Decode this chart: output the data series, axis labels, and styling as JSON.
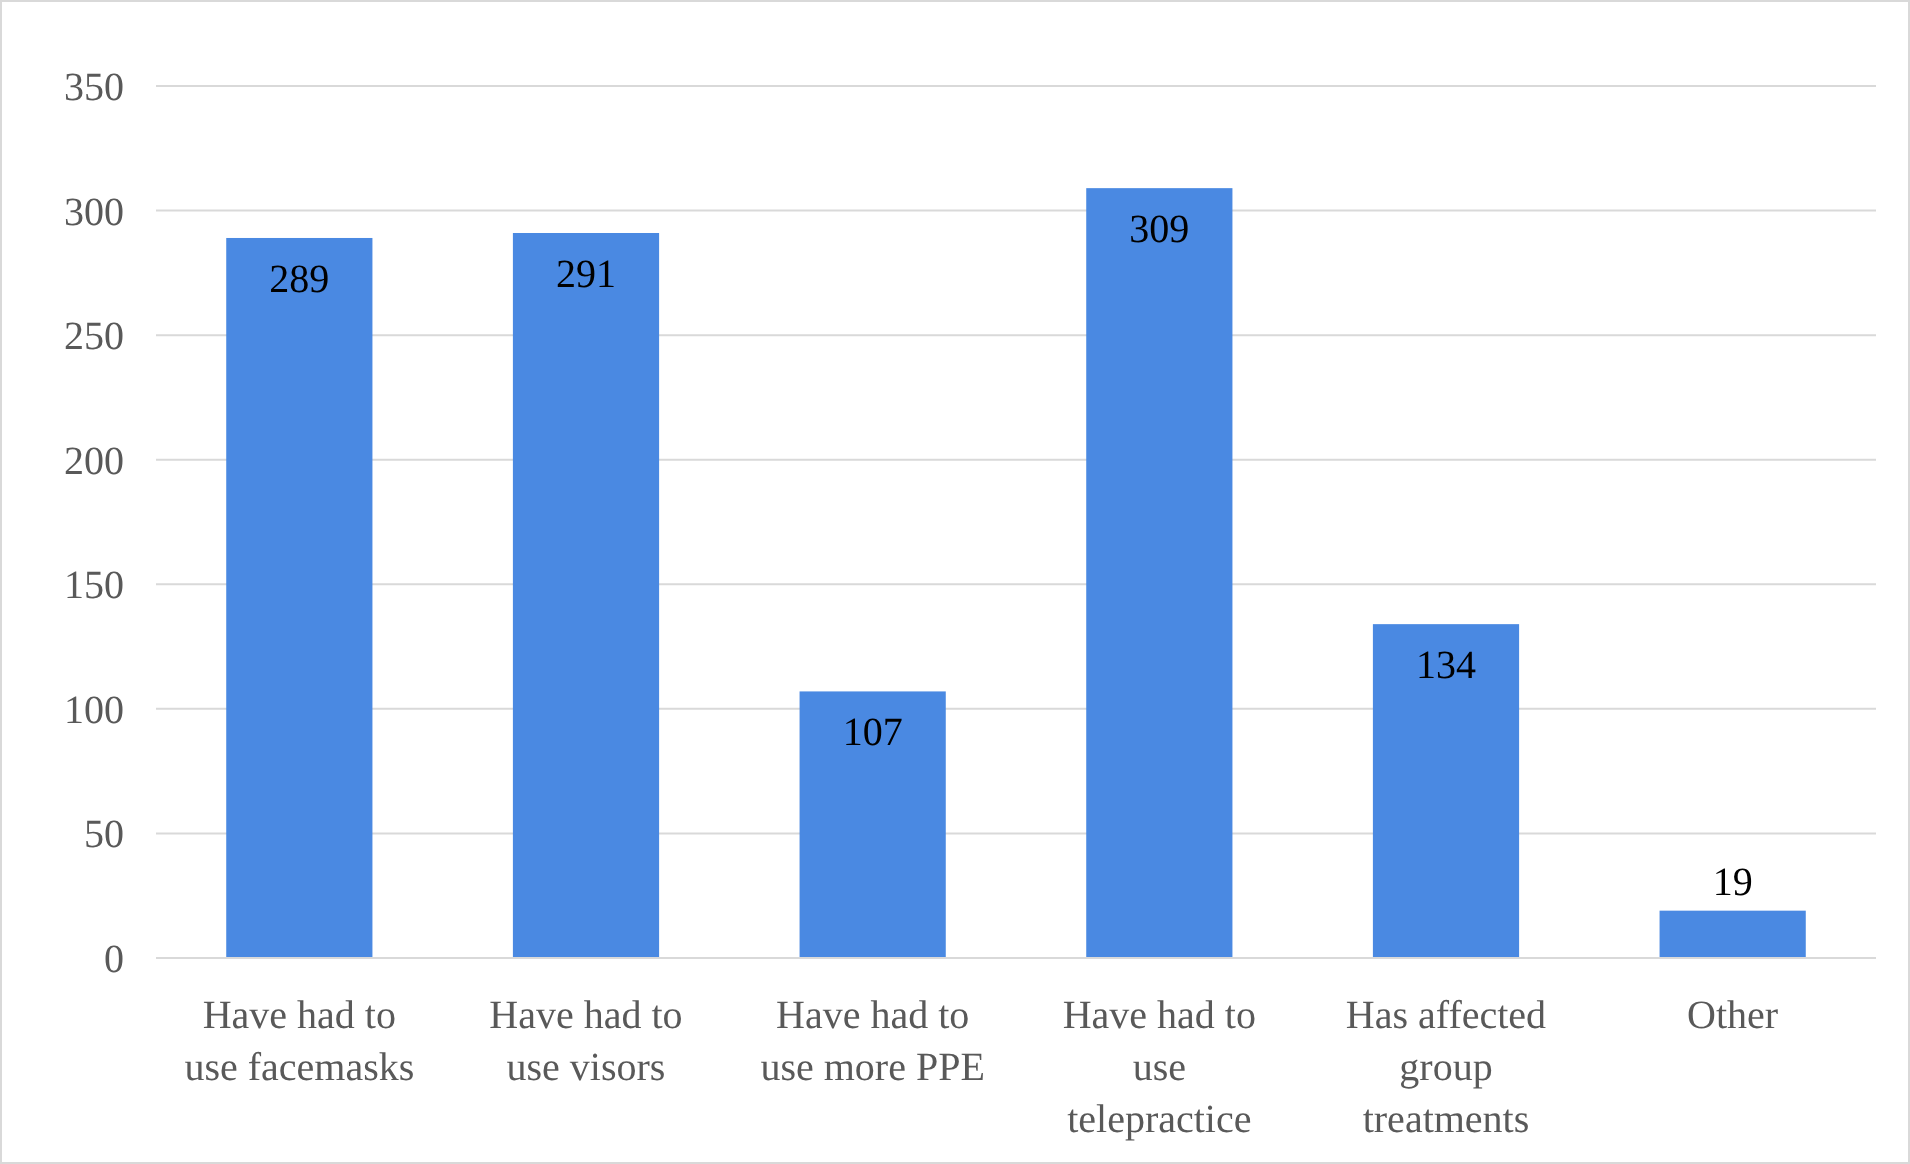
{
  "chart_data": {
    "type": "bar",
    "categories": [
      "Have had to use facemasks",
      "Have had to use visors",
      "Have had to use more PPE",
      "Have had to use telepractice",
      "Has affected group treatments",
      "Other"
    ],
    "values": [
      289,
      291,
      107,
      309,
      134,
      19
    ],
    "color": "#4a89e2",
    "ylim": [
      0,
      350
    ],
    "yticks": [
      0,
      50,
      100,
      150,
      200,
      250,
      300,
      350
    ],
    "grid": "y",
    "data_labels": true
  }
}
